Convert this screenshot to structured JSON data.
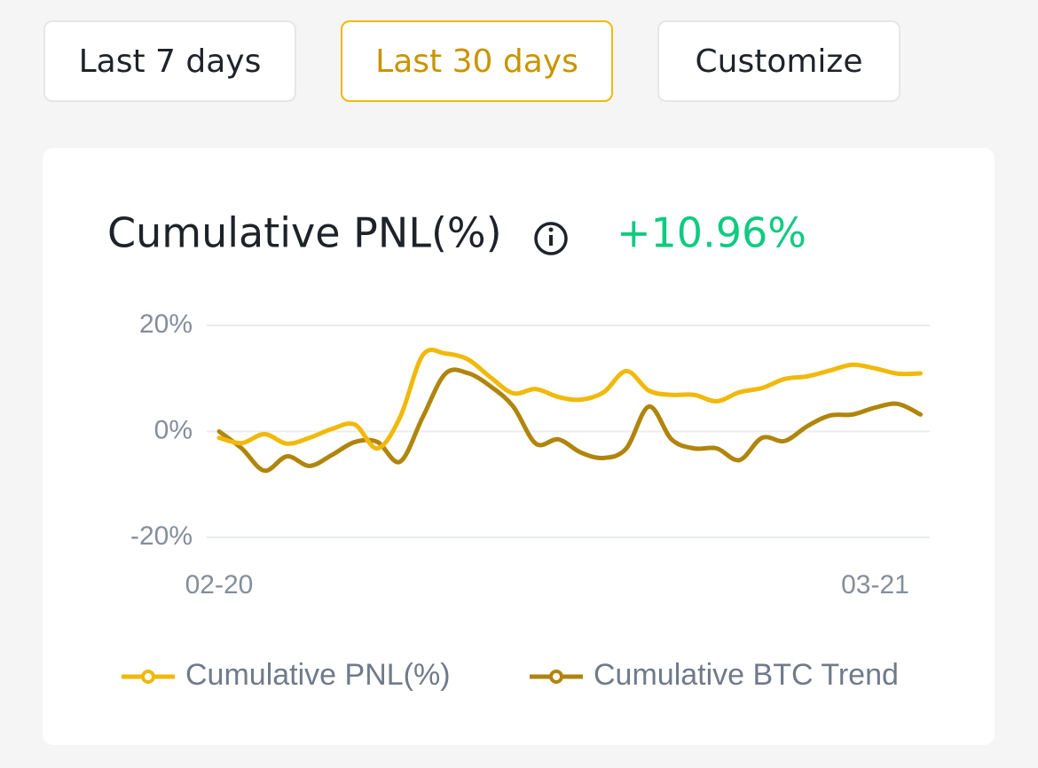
{
  "filters": [
    "Last 7 days",
    "Last 30 days",
    "Customize"
  ],
  "selected_filter": 1,
  "pnl_value": "+10.96%",
  "chart_data": {
    "type": "line",
    "title": "Cumulative PNL(%)",
    "categories": [
      "02-20",
      null,
      null,
      null,
      null,
      null,
      null,
      null,
      null,
      null,
      null,
      null,
      null,
      null,
      null,
      null,
      null,
      null,
      null,
      null,
      null,
      null,
      null,
      null,
      null,
      null,
      null,
      null,
      null,
      "03-21",
      null,
      null
    ],
    "series": [
      {
        "name": "Cumulative PNL(%)",
        "color": "#f0b90b",
        "values": [
          -1.2,
          -2.2,
          -0.5,
          -2.3,
          -1.2,
          0.5,
          1.3,
          -3.2,
          2.7,
          14.4,
          14.7,
          13.6,
          10.2,
          7.2,
          8,
          6.5,
          6,
          7.4,
          11.4,
          7.7,
          6.9,
          6.9,
          5.7,
          7.4,
          8.2,
          9.9,
          10.4,
          11.5,
          12.6,
          11.9,
          10.9,
          10.96
        ]
      },
      {
        "name": "Cumulative BTC Trend",
        "color": "#b0850c",
        "values": [
          0,
          -3.2,
          -7.4,
          -4.7,
          -6.5,
          -4.4,
          -2,
          -2,
          -5.7,
          2.7,
          10.9,
          11,
          8.5,
          4.7,
          -2.3,
          -1.5,
          -4,
          -5,
          -3.2,
          4.7,
          -1.5,
          -3.2,
          -3.2,
          -5.4,
          -1.2,
          -1.8,
          1,
          3,
          3.2,
          4.5,
          5.2,
          3.2
        ]
      }
    ],
    "ylim": [
      -20,
      20
    ],
    "yticks": [
      {
        "value": -20,
        "label": "-20%"
      },
      {
        "value": 0,
        "label": "0%"
      },
      {
        "value": 20,
        "label": "20%"
      }
    ],
    "grid": true,
    "legend": "bottom"
  }
}
